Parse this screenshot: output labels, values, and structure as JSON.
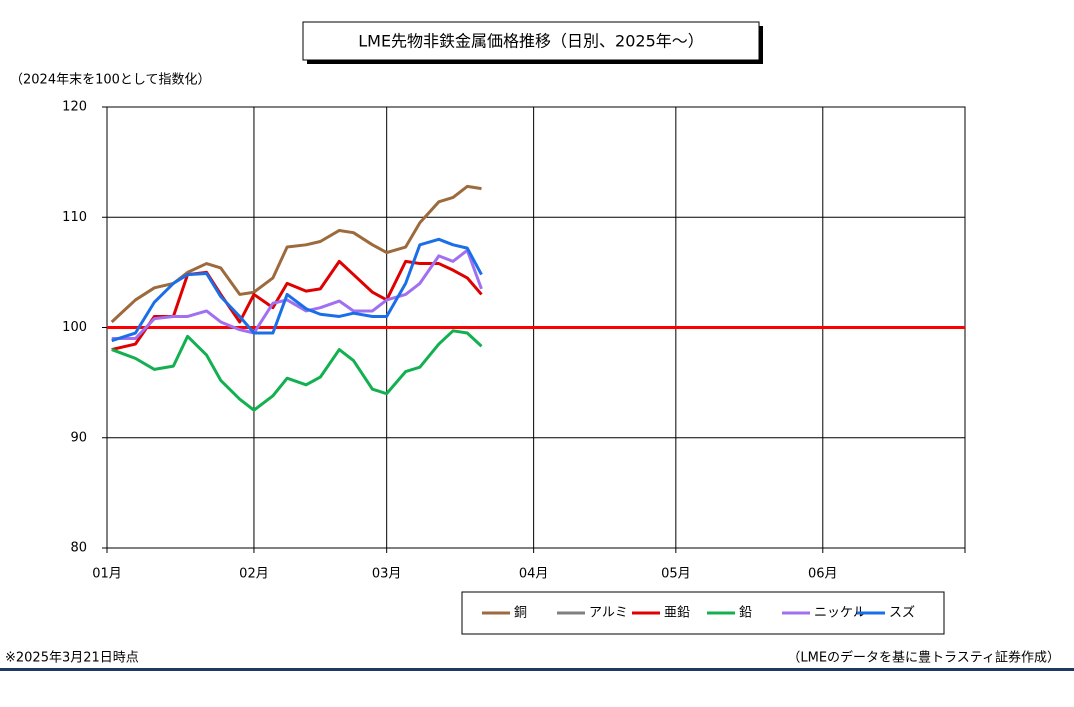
{
  "chart_data": {
    "type": "line",
    "title": "LME先物非鉄金属価格推移（日別、2025年～）",
    "y_label": "（2024年末を100として指数化）",
    "note": "※2025年3月21日時点",
    "source": "（LMEのデータを基に豊トラスティ証券作成）",
    "x": [
      1,
      6,
      10,
      14,
      17,
      21,
      24,
      28,
      31,
      35,
      38,
      42,
      45,
      49,
      52,
      56,
      59,
      63,
      66,
      70,
      73,
      76,
      79
    ],
    "xlim": [
      0,
      181
    ],
    "xticks": [
      {
        "value": 0,
        "label": "01月"
      },
      {
        "value": 31,
        "label": "02月"
      },
      {
        "value": 59,
        "label": "03月"
      },
      {
        "value": 90,
        "label": "04月"
      },
      {
        "value": 120,
        "label": "05月"
      },
      {
        "value": 151,
        "label": "06月"
      },
      {
        "value": 181,
        "label": ""
      }
    ],
    "ylim": [
      80,
      120
    ],
    "yticks": [
      80,
      90,
      100,
      110,
      120
    ],
    "grid": true,
    "reference_line": {
      "value": 100,
      "color": "#ff0000"
    },
    "series": [
      {
        "name": "銅",
        "color": "#9c6a3c",
        "values": [
          100.5,
          102.5,
          103.6,
          104,
          105,
          105.8,
          105.4,
          103,
          103.2,
          104.5,
          107.3,
          107.5,
          107.8,
          108.8,
          108.6,
          107.5,
          106.8,
          107.3,
          109.5,
          111.4,
          111.8,
          112.8,
          112.6
        ]
      },
      {
        "name": "アルミ",
        "color": "#808080",
        "values": [
          null,
          null,
          null,
          null,
          null,
          null,
          null,
          null,
          null,
          null,
          null,
          null,
          null,
          null,
          null,
          null,
          null,
          null,
          null,
          null,
          null,
          null,
          null
        ]
      },
      {
        "name": "亜鉛",
        "color": "#e00000",
        "values": [
          98,
          98.5,
          101,
          101,
          104.8,
          105,
          103,
          100.5,
          103,
          101.8,
          104,
          103.3,
          103.5,
          106,
          104.8,
          103.2,
          102.5,
          106,
          105.8,
          105.8,
          105.2,
          104.5,
          103
        ]
      },
      {
        "name": "鉛",
        "color": "#12b050",
        "values": [
          98,
          97.2,
          96.2,
          96.5,
          99.2,
          97.5,
          95.2,
          93.5,
          92.5,
          93.8,
          95.4,
          94.8,
          95.5,
          98,
          97,
          94.4,
          94,
          96,
          96.4,
          98.5,
          99.7,
          99.5,
          98.3
        ]
      },
      {
        "name": "ニッケル",
        "color": "#a070f0",
        "values": [
          99,
          99,
          100.8,
          101,
          101,
          101.5,
          100.5,
          99.8,
          99.5,
          102.2,
          102.5,
          101.5,
          101.8,
          102.4,
          101.5,
          101.5,
          102.5,
          103,
          104,
          106.5,
          106,
          107,
          103.5
        ]
      },
      {
        "name": "スズ",
        "color": "#1a6fe8",
        "values": [
          98.8,
          99.5,
          102.3,
          104,
          104.8,
          104.9,
          102.8,
          101,
          99.5,
          99.5,
          103,
          101.7,
          101.2,
          101,
          101.3,
          101,
          101,
          104,
          107.5,
          108,
          107.5,
          107.2,
          104.8
        ]
      }
    ]
  }
}
